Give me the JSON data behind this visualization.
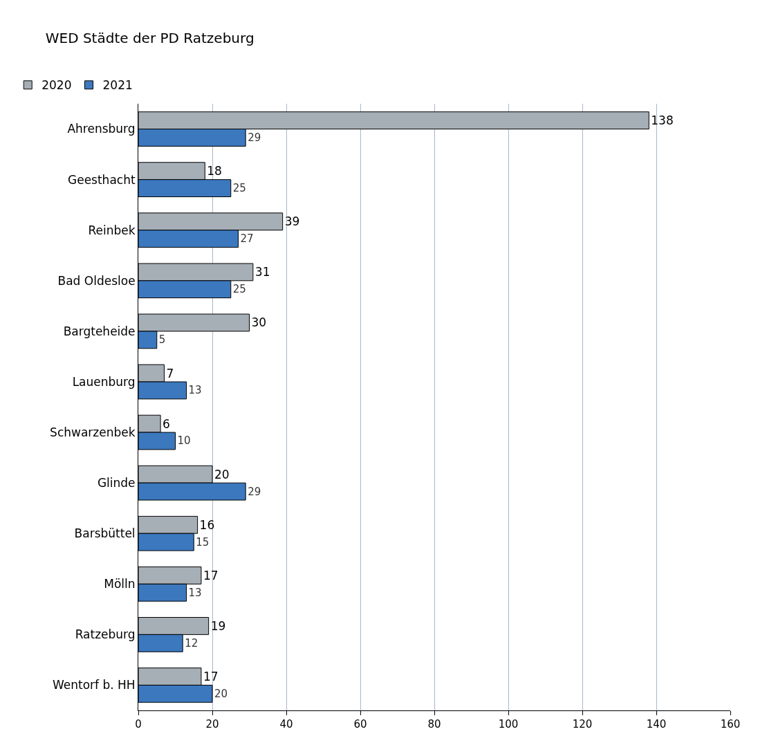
{
  "chart_data": {
    "type": "bar",
    "orientation": "horizontal",
    "title": "WED Städte der PD Ratzeburg",
    "categories": [
      "Ahrensburg",
      "Geesthacht",
      "Reinbek",
      "Bad Oldesloe",
      "Bargteheide",
      "Lauenburg",
      "Schwarzenbek",
      "Glinde",
      "Barsbüttel",
      "Mölln",
      "Ratzeburg",
      "Wentorf b. HH"
    ],
    "series": [
      {
        "name": "2020",
        "color": "#a6aeb6",
        "values": [
          138,
          18,
          39,
          31,
          30,
          7,
          6,
          20,
          16,
          17,
          19,
          17
        ]
      },
      {
        "name": "2021",
        "color": "#3b78be",
        "values": [
          29,
          25,
          27,
          25,
          5,
          13,
          10,
          29,
          15,
          13,
          12,
          20
        ]
      }
    ],
    "xlim": [
      0,
      160
    ],
    "xticks": [
      0,
      20,
      40,
      60,
      80,
      100,
      120,
      140,
      160
    ],
    "grid": "x",
    "legend": "top left",
    "data_labels": true
  }
}
